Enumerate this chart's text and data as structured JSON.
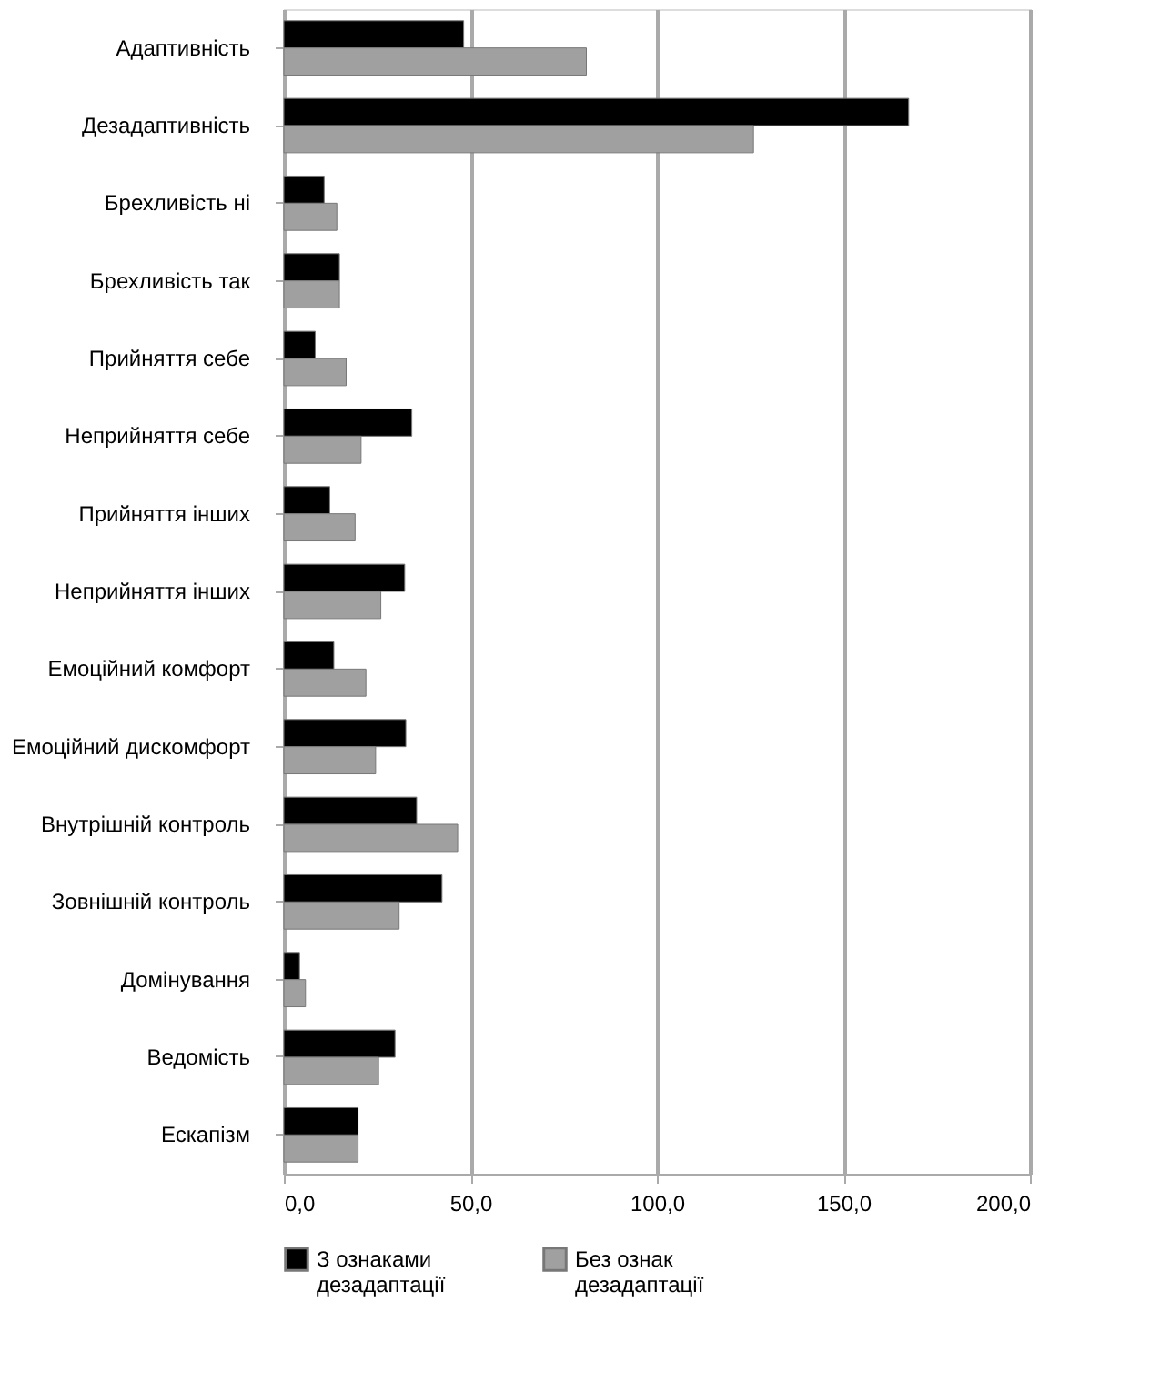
{
  "chart_data": {
    "type": "bar",
    "orientation": "horizontal",
    "categories": [
      "Адаптивність",
      "Дезадаптивність",
      "Брехливість ні",
      "Брехливість так",
      "Прийняття себе",
      "Неприйняття себе",
      "Прийняття інших",
      "Неприйняття інших",
      "Емоційний комфорт",
      "Емоційний дискомфорт",
      "Внутрішній контроль",
      "Зовнішній контроль",
      "Домінування",
      "Ведомість",
      "Ескапізм"
    ],
    "series": [
      {
        "name": "З ознаками дезадаптації",
        "color": "#000000",
        "values": [
          48.2,
          167.5,
          10.8,
          14.9,
          8.4,
          34.3,
          12.3,
          32.4,
          13.4,
          32.7,
          35.6,
          42.4,
          4.2,
          29.8,
          19.9
        ]
      },
      {
        "name": "Без ознак дезадаптації",
        "color": "#a0a0a0",
        "values": [
          81.1,
          125.9,
          14.2,
          14.9,
          16.7,
          20.7,
          19.1,
          26.0,
          22.0,
          24.6,
          46.6,
          30.9,
          5.8,
          25.4,
          19.9
        ]
      }
    ],
    "xlim": [
      0,
      200
    ],
    "xticks": [
      {
        "value": 0,
        "label": "0,0"
      },
      {
        "value": 50,
        "label": "50,0"
      },
      {
        "value": 100,
        "label": "100,0"
      },
      {
        "value": 150,
        "label": "150,0"
      },
      {
        "value": 200,
        "label": "200,0"
      }
    ],
    "grid": "x",
    "legend": "bottom"
  }
}
